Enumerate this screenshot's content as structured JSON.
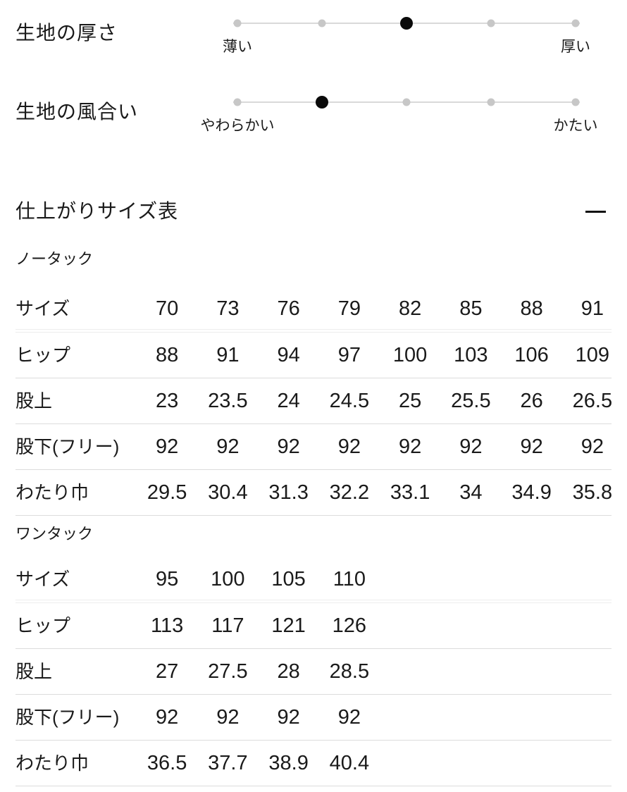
{
  "fabric_attributes": [
    {
      "label": "生地の厚さ",
      "left_label": "薄い",
      "right_label": "厚い",
      "scale_points": 5,
      "active_point": 3
    },
    {
      "label": "生地の風合い",
      "left_label": "やわらかい",
      "right_label": "かたい",
      "scale_points": 5,
      "active_point": 2
    }
  ],
  "size_section": {
    "title": "仕上がりサイズ表",
    "collapse_icon": "minus",
    "tables": [
      {
        "subtitle": "ノータック",
        "rows": [
          {
            "label": "サイズ",
            "values": [
              "70",
              "73",
              "76",
              "79",
              "82",
              "85",
              "88",
              "91"
            ]
          },
          {
            "label": "ヒップ",
            "values": [
              "88",
              "91",
              "94",
              "97",
              "100",
              "103",
              "106",
              "109"
            ]
          },
          {
            "label": "股上",
            "values": [
              "23",
              "23.5",
              "24",
              "24.5",
              "25",
              "25.5",
              "26",
              "26.5"
            ]
          },
          {
            "label": "股下(フリー)",
            "values": [
              "92",
              "92",
              "92",
              "92",
              "92",
              "92",
              "92",
              "92"
            ]
          },
          {
            "label": "わたり巾",
            "values": [
              "29.5",
              "30.4",
              "31.3",
              "32.2",
              "33.1",
              "34",
              "34.9",
              "35.8"
            ]
          }
        ]
      },
      {
        "subtitle": "ワンタック",
        "rows": [
          {
            "label": "サイズ",
            "values": [
              "95",
              "100",
              "105",
              "110"
            ]
          },
          {
            "label": "ヒップ",
            "values": [
              "113",
              "117",
              "121",
              "126"
            ]
          },
          {
            "label": "股上",
            "values": [
              "27",
              "27.5",
              "28",
              "28.5"
            ]
          },
          {
            "label": "股下(フリー)",
            "values": [
              "92",
              "92",
              "92",
              "92"
            ]
          },
          {
            "label": "わたり巾",
            "values": [
              "36.5",
              "37.7",
              "38.9",
              "40.4"
            ]
          }
        ]
      }
    ]
  },
  "colors": {
    "text": "#1a1a1a",
    "active_dot": "#0a0a0a",
    "inactive_dot": "#c7c7c7",
    "track": "#d9d9d9",
    "divider_single": "#dcdcdc",
    "divider_double": "#ededed"
  }
}
